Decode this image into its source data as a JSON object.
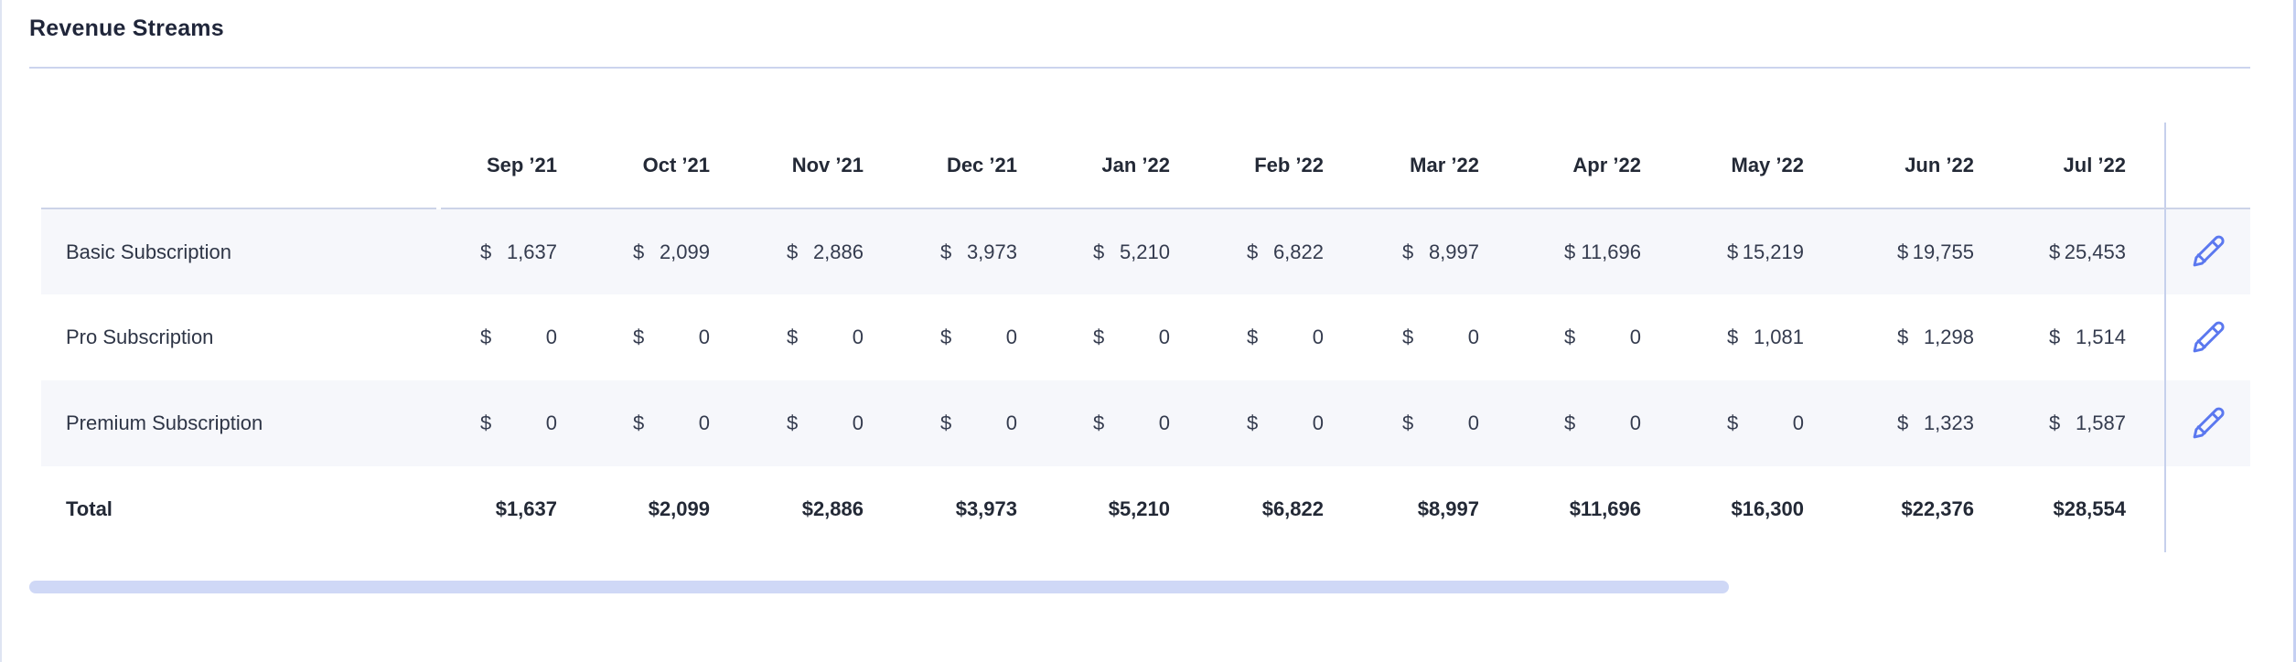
{
  "panel": {
    "title": "Revenue Streams"
  },
  "table": {
    "currency_symbol": "$",
    "columns": [
      "Sep ’21",
      "Oct ’21",
      "Nov ’21",
      "Dec ’21",
      "Jan ’22",
      "Feb ’22",
      "Mar ’22",
      "Apr ’22",
      "May ’22",
      "Jun ’22",
      "Jul ’22"
    ],
    "rows": [
      {
        "label": "Basic Subscription",
        "type": "stream",
        "values": [
          "1,637",
          "2,099",
          "2,886",
          "3,973",
          "5,210",
          "6,822",
          "8,997",
          "11,696",
          "15,219",
          "19,755",
          "25,453"
        ]
      },
      {
        "label": "Pro Subscription",
        "type": "stream",
        "values": [
          "0",
          "0",
          "0",
          "0",
          "0",
          "0",
          "0",
          "0",
          "1,081",
          "1,298",
          "1,514"
        ]
      },
      {
        "label": "Premium Subscription",
        "type": "stream",
        "values": [
          "0",
          "0",
          "0",
          "0",
          "0",
          "0",
          "0",
          "0",
          "0",
          "1,323",
          "1,587"
        ]
      },
      {
        "label": "Total",
        "type": "total",
        "values": [
          "$1,637",
          "$2,099",
          "$2,886",
          "$3,973",
          "$5,210",
          "$6,822",
          "$8,997",
          "$11,696",
          "$16,300",
          "$22,376",
          "$28,554"
        ]
      }
    ],
    "row_action_icon": "pencil-icon"
  },
  "colors": {
    "accent_blue": "#5b78ef",
    "row_stripe": "#f6f7fb",
    "scrollbar_thumb": "#cfd8f6",
    "divider": "#ccd4ee",
    "text_dark": "#232936",
    "text_body": "#343b4e"
  }
}
